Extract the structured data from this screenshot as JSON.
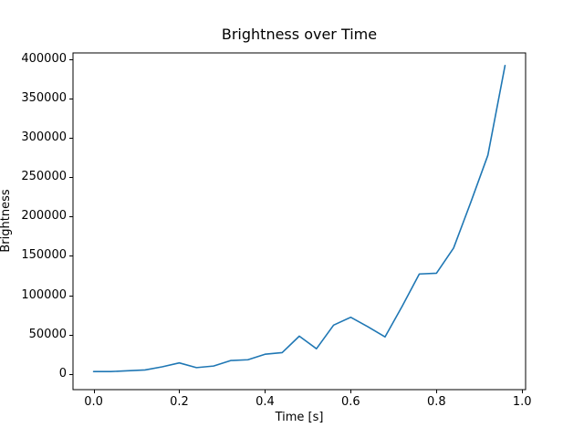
{
  "figure": {
    "background": "#ffffff"
  },
  "chart_data": {
    "type": "line",
    "title": "Brightness over Time",
    "xlabel": "Time [s]",
    "ylabel": "Brightness",
    "x": [
      0.0,
      0.04,
      0.08,
      0.12,
      0.16,
      0.2,
      0.24,
      0.28,
      0.32,
      0.36,
      0.4,
      0.44,
      0.48,
      0.52,
      0.56,
      0.6,
      0.64,
      0.68,
      0.72,
      0.76,
      0.8,
      0.84,
      0.88,
      0.92,
      0.96
    ],
    "y": [
      3000,
      3000,
      4000,
      5000,
      9000,
      14000,
      8000,
      10000,
      17000,
      18000,
      25000,
      27000,
      48000,
      32000,
      62000,
      72000,
      60000,
      47000,
      86000,
      127000,
      128000,
      160000,
      218000,
      278000,
      392000
    ],
    "x_ticks": {
      "values": [
        0.0,
        0.2,
        0.4,
        0.6,
        0.8,
        1.0
      ],
      "labels": [
        "0.0",
        "0.2",
        "0.4",
        "0.6",
        "0.8",
        "1.0"
      ]
    },
    "y_ticks": {
      "values": [
        0,
        50000,
        100000,
        150000,
        200000,
        250000,
        300000,
        350000,
        400000
      ],
      "labels": [
        "0",
        "50000",
        "100000",
        "150000",
        "200000",
        "250000",
        "300000",
        "350000",
        "400000"
      ]
    },
    "xlim": [
      -0.048,
      1.008
    ],
    "ylim": [
      -20000,
      408000
    ],
    "grid": false,
    "legend": null,
    "line_color": "#1f77b4",
    "axis_color": "#000000"
  }
}
